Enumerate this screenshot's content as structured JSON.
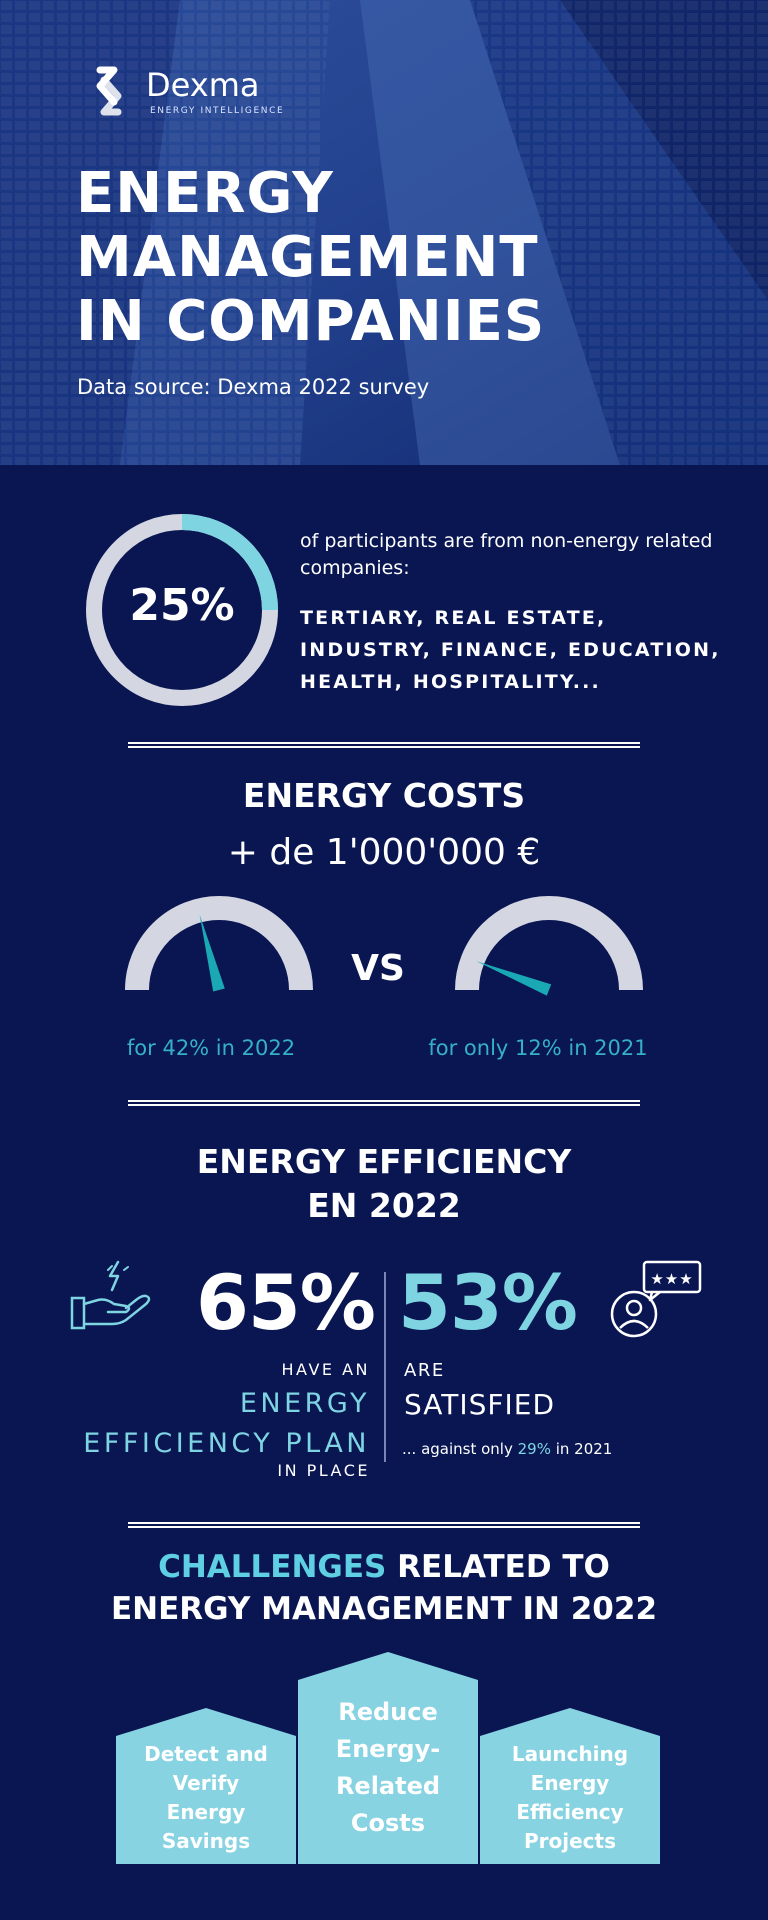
{
  "brand": {
    "name": "Dexma",
    "tagline": "ENERGY INTELLIGENCE"
  },
  "hero": {
    "title_lines": [
      "ENERGY",
      "MANAGEMENT",
      "IN COMPANIES"
    ],
    "source": "Data source: Dexma 2022 survey"
  },
  "participants": {
    "percent_label": "25%",
    "percent_value": 25,
    "description": "of participants are from non-energy related companies:",
    "sectors_lines": [
      "TERTIARY, REAL ESTATE,",
      "INDUSTRY, FINANCE, EDUCATION,",
      "HEALTH, HOSPITALITY..."
    ]
  },
  "energy_costs": {
    "title": "ENERGY COSTS",
    "amount": "+ de 1'000'000 €",
    "vs": "VS",
    "gauges": [
      {
        "caption": "for 42% in 2022",
        "value_percent": 42
      },
      {
        "caption": "for only 12% in 2021",
        "value_percent": 12
      }
    ]
  },
  "efficiency": {
    "title_lines": [
      "ENERGY EFFICIENCY",
      "EN 2022"
    ],
    "left": {
      "percent": "65%",
      "pre": "HAVE AN",
      "highlight_lines": [
        "ENERGY",
        "EFFICIENCY PLAN"
      ],
      "post": "IN PLACE"
    },
    "right": {
      "percent": "53%",
      "pre": "ARE",
      "main": "SATISFIED",
      "note_before": "... against only ",
      "note_highlight": "29%",
      "note_after": " in 2021"
    }
  },
  "challenges": {
    "title_highlight": "CHALLENGES",
    "title_rest_1": " RELATED TO",
    "title_line_2": "ENERGY MANAGEMENT IN 2022",
    "items": [
      {
        "lines": [
          "Detect and",
          "Verify",
          "Energy",
          "Savings"
        ]
      },
      {
        "lines": [
          "Reduce",
          "Energy-",
          "Related",
          "Costs"
        ]
      },
      {
        "lines": [
          "Launching",
          "Energy",
          "Efficiency",
          "Projects"
        ]
      }
    ]
  },
  "colors": {
    "background": "#091652",
    "accent": "#7fd4e2",
    "gauge_track": "#d4d7e2",
    "needle": "#1aa9b4"
  }
}
